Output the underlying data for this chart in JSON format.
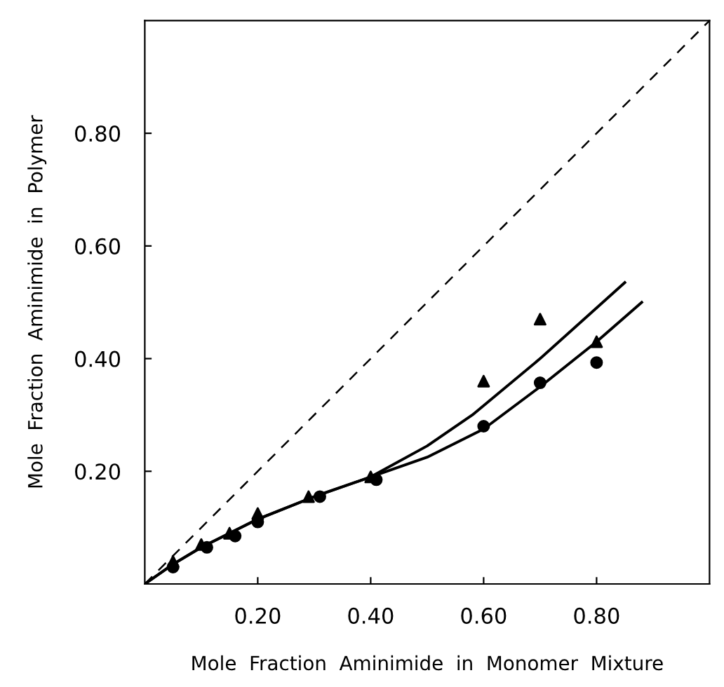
{
  "chart_data": {
    "type": "scatter",
    "xlabel": "Mole  Fraction  Aminimide  in  Monomer  Mixture",
    "ylabel": "Mole  Fraction  Aminimide  in  Polymer",
    "xlim": [
      0,
      1
    ],
    "ylim": [
      0,
      1
    ],
    "xticks": [
      {
        "value": 0.2,
        "label": "0.20"
      },
      {
        "value": 0.4,
        "label": "0.40"
      },
      {
        "value": 0.6,
        "label": "0.60"
      },
      {
        "value": 0.8,
        "label": "0.80"
      }
    ],
    "yticks": [
      {
        "value": 0.2,
        "label": "0.20"
      },
      {
        "value": 0.4,
        "label": "0.40"
      },
      {
        "value": 0.6,
        "label": "0.60"
      },
      {
        "value": 0.8,
        "label": "0.80"
      }
    ],
    "grid": false,
    "legend": false,
    "series": [
      {
        "marker": "triangle",
        "color": "#000000",
        "x": [
          0.05,
          0.1,
          0.15,
          0.2,
          0.29,
          0.4,
          0.6,
          0.7,
          0.8
        ],
        "values": [
          0.04,
          0.07,
          0.09,
          0.125,
          0.155,
          0.19,
          0.36,
          0.47,
          0.43
        ]
      },
      {
        "marker": "circle",
        "color": "#000000",
        "x": [
          0.05,
          0.11,
          0.16,
          0.2,
          0.31,
          0.41,
          0.6,
          0.7,
          0.8
        ],
        "values": [
          0.03,
          0.065,
          0.085,
          0.11,
          0.155,
          0.185,
          0.28,
          0.357,
          0.393
        ]
      },
      {
        "type": "line",
        "line_style": "solid",
        "color": "#000000",
        "x": [
          0,
          0.05,
          0.1,
          0.2,
          0.3,
          0.4,
          0.5,
          0.58,
          0.7,
          0.8,
          0.85
        ],
        "values": [
          0,
          0.035,
          0.065,
          0.115,
          0.155,
          0.19,
          0.245,
          0.3,
          0.4,
          0.49,
          0.535
        ]
      },
      {
        "type": "line",
        "line_style": "solid",
        "color": "#000000",
        "x": [
          0,
          0.05,
          0.1,
          0.2,
          0.3,
          0.4,
          0.5,
          0.6,
          0.7,
          0.8,
          0.88
        ],
        "values": [
          0,
          0.035,
          0.065,
          0.115,
          0.155,
          0.19,
          0.225,
          0.275,
          0.35,
          0.43,
          0.5
        ]
      },
      {
        "type": "line",
        "line_style": "dashed",
        "color": "#000000",
        "x": [
          0,
          1
        ],
        "values": [
          0,
          1
        ]
      }
    ]
  }
}
